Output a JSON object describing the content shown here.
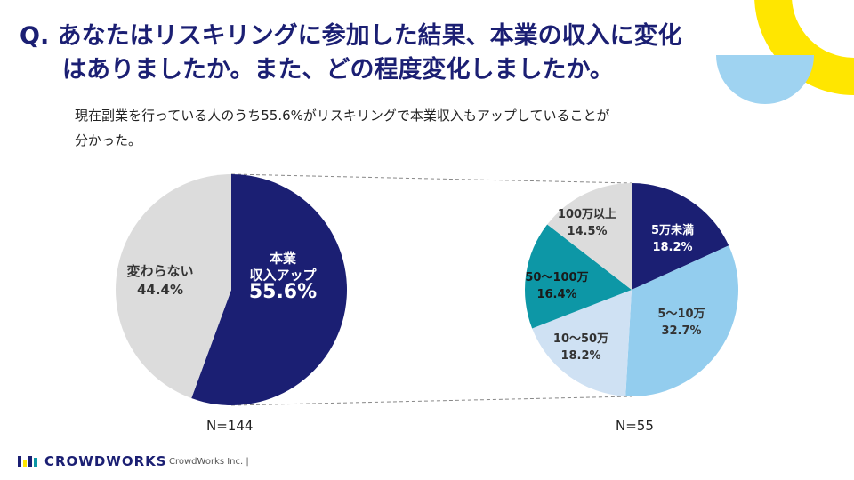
{
  "title": {
    "line1": "Q. あなたはリスキリングに参加した結果、本業の収入に変化",
    "line2": "はありましたか。また、どの程度変化しましたか。"
  },
  "subtitle": {
    "line1": "現在副業を行っている人のうち55.6%がリスキリングで本業収入もアップしていることが",
    "line2": "分かった。"
  },
  "colors": {
    "navy": "#1b1f73",
    "light_blue": "#93cdee",
    "pale_blue": "#cfe1f3",
    "teal": "#0d97a6",
    "gray": "#dcdcdc",
    "yellow": "#ffe600",
    "deco_blue": "#9fd3f1"
  },
  "chart_data": [
    {
      "type": "pie",
      "name": "main",
      "categories": [
        "本業 収入アップ",
        "変わらない"
      ],
      "values": [
        55.6,
        44.4
      ],
      "labels": [
        {
          "lines": [
            "本業",
            "収入アップ"
          ],
          "value": "55.6%"
        },
        {
          "lines": [
            "変わらない"
          ],
          "value": "44.4%"
        }
      ],
      "n_label": "N=144"
    },
    {
      "type": "pie",
      "name": "breakdown",
      "categories": [
        "5万未満",
        "5〜10万",
        "10〜50万",
        "50〜100万",
        "100万以上"
      ],
      "values": [
        18.2,
        32.7,
        18.2,
        16.4,
        14.5
      ],
      "labels": [
        {
          "lines": [
            "5万未満"
          ],
          "value": "18.2%"
        },
        {
          "lines": [
            "5〜10万"
          ],
          "value": "32.7%"
        },
        {
          "lines": [
            "10〜50万"
          ],
          "value": "18.2%"
        },
        {
          "lines": [
            "50〜100万"
          ],
          "value": "16.4%"
        },
        {
          "lines": [
            "100万以上"
          ],
          "value": "14.5%"
        }
      ],
      "n_label": "N=55"
    }
  ],
  "footer": {
    "logo_text": "CROWDWORKS",
    "company": "CrowdWorks Inc. |"
  }
}
